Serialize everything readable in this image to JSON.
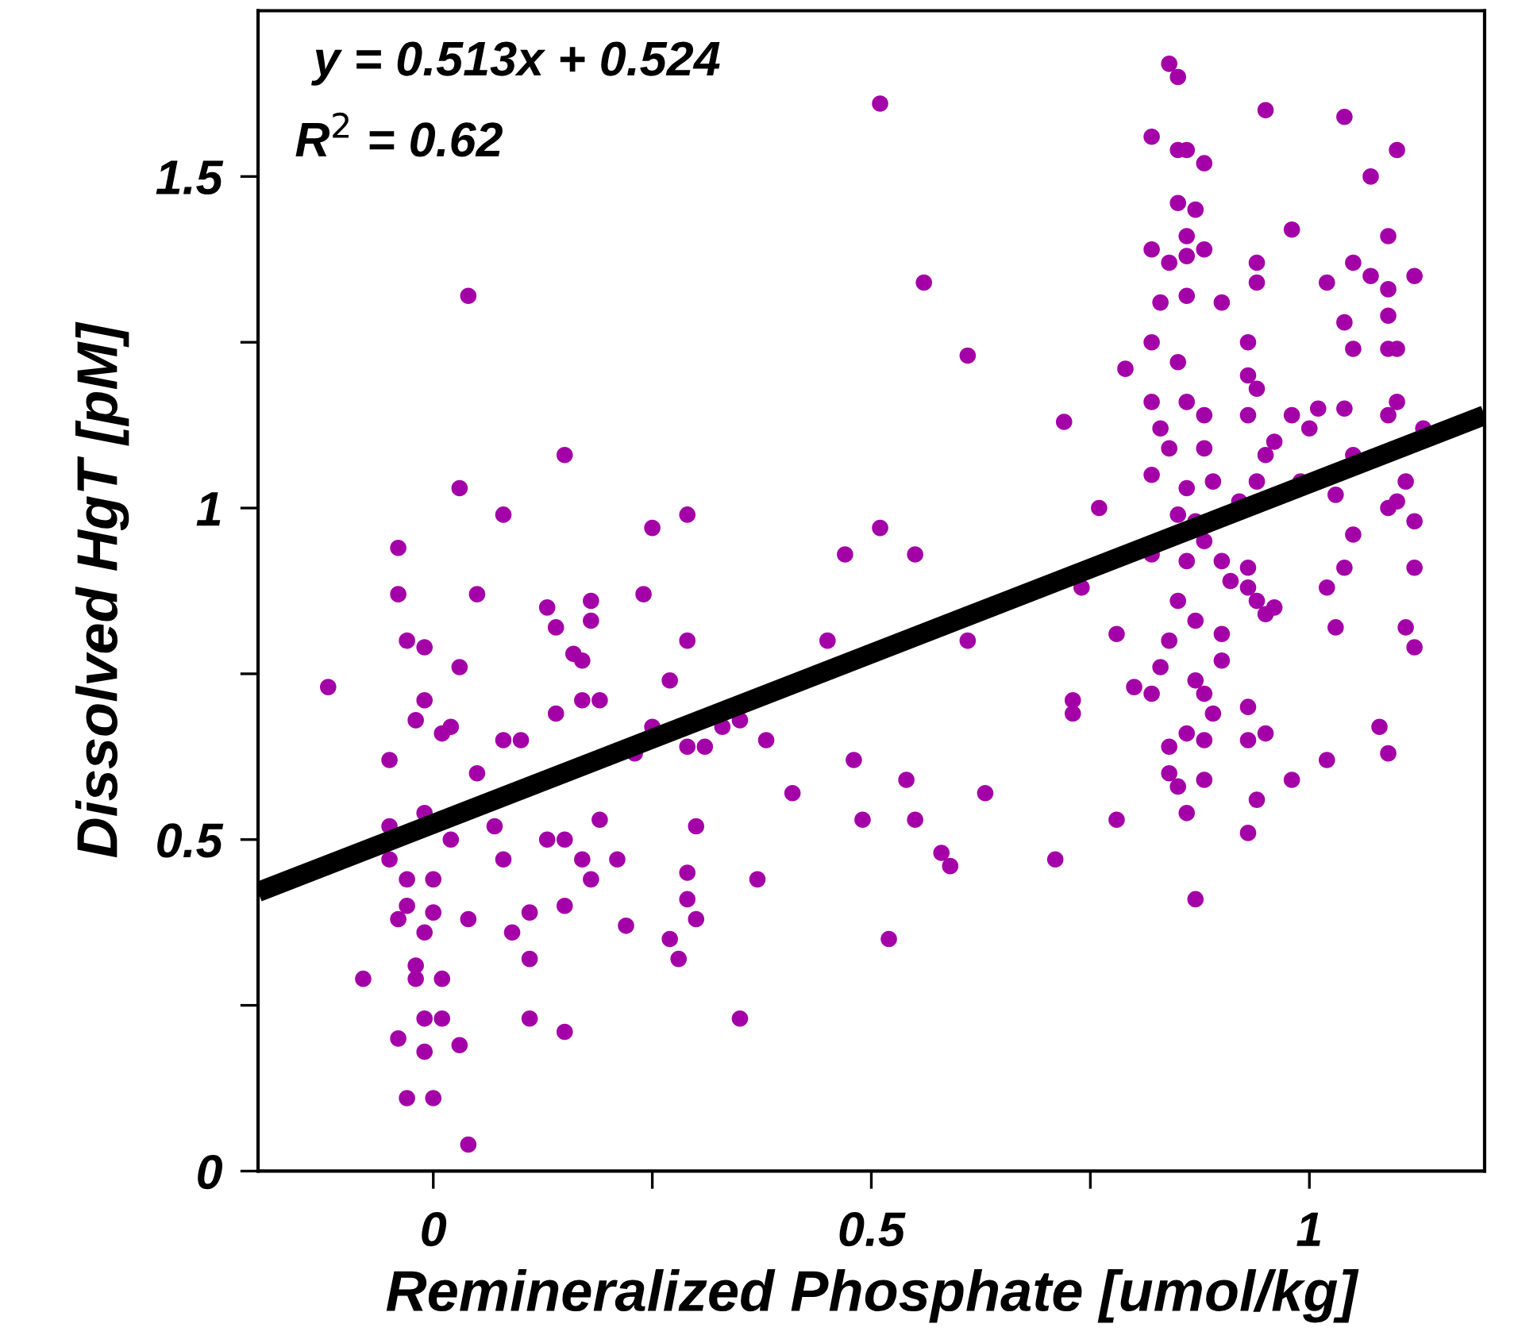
{
  "chart_data": {
    "type": "scatter",
    "xlabel": "Remineralized Phosphate [umol/kg]",
    "ylabel": "Dissolved HgT [pM]",
    "annotations": [
      "y = 0.513x + 0.524",
      "R$^{2}$ = 0.62"
    ],
    "xlim": [
      -0.2,
      1.2
    ],
    "ylim": [
      0,
      1.75
    ],
    "xticks": [
      0,
      {
        "value": 0.25,
        "label": null
      },
      0.5,
      {
        "value": 0.75,
        "label": null
      },
      1
    ],
    "yticks": [
      0,
      {
        "value": 0.25,
        "label": null
      },
      0.5,
      {
        "value": 0.75,
        "label": null
      },
      1,
      {
        "value": 1.25,
        "label": null
      },
      1.5
    ],
    "grid": false,
    "legend": false,
    "marker": "circle",
    "series": [
      {
        "type": "scatter",
        "color": "#a400a8",
        "x": [
          -0.12,
          -0.08,
          -0.04,
          -0.04,
          -0.05,
          -0.05,
          -0.05,
          -0.04,
          -0.04,
          -0.03,
          -0.03,
          -0.01,
          -0.03,
          -0.03,
          -0.02,
          -0.02,
          -0.01,
          -0.01,
          -0.02,
          0,
          -0.01,
          0,
          0,
          -0.01,
          0.01,
          0.01,
          0.01,
          0.02,
          -0.01,
          0.02,
          0.03,
          0.03,
          0.04,
          0.04,
          0.03,
          0.04,
          0.05,
          0.05,
          0.07,
          0.08,
          0.08,
          0.08,
          0.09,
          0.1,
          0.11,
          0.11,
          0.11,
          0.13,
          0.13,
          0.14,
          0.15,
          0.15,
          0.15,
          0.15,
          0.14,
          0.16,
          0.17,
          0.18,
          0.18,
          0.17,
          0.17,
          0.19,
          0.18,
          0.19,
          0.21,
          0.22,
          0.23,
          0.24,
          0.25,
          0.25,
          0.27,
          0.27,
          0.28,
          0.29,
          0.29,
          0.29,
          0.29,
          0.29,
          0.3,
          0.3,
          0.31,
          0.33,
          0.35,
          0.35,
          0.37,
          0.38,
          0.41,
          0.45,
          0.48,
          0.47,
          0.49,
          0.51,
          0.51,
          0.52,
          0.54,
          0.55,
          0.55,
          0.56,
          0.58,
          0.59,
          0.61,
          0.61,
          0.63,
          0.71,
          0.72,
          0.73,
          0.73,
          0.74,
          0.76,
          0.78,
          0.78,
          0.79,
          0.8,
          0.82,
          0.82,
          0.82,
          0.82,
          0.82,
          0.82,
          0.84,
          0.85,
          0.85,
          0.86,
          0.88,
          0.85,
          0.87,
          0.86,
          0.88,
          0.86,
          0.83,
          0.86,
          0.9,
          0.84,
          0.85,
          0.86,
          0.88,
          0.82,
          0.83,
          0.84,
          0.88,
          0.86,
          0.89,
          0.85,
          0.87,
          0.86,
          0.88,
          0.9,
          0.91,
          0.93,
          0.94,
          0.93,
          0.95,
          0.96,
          0.85,
          0.87,
          0.84,
          0.9,
          0.83,
          0.87,
          0.88,
          0.89,
          0.86,
          0.84,
          0.88,
          0.84,
          0.85,
          0.88,
          0.86,
          0.87,
          0.9,
          0.93,
          0.93,
          0.95,
          0.94,
          0.93,
          0.98,
          1.02,
          1.08,
          1.09,
          1.12,
          1.12,
          1.12,
          1.1,
          1.11,
          1.09,
          1.03,
          1.02,
          1.04,
          1.05,
          1.03,
          0.99,
          1.0,
          0.98,
          1.01,
          1.04,
          1.1,
          1.09,
          1.13,
          1.05,
          0.95,
          0.92,
          0.94,
          0.93,
          0.94,
          0.93,
          0.93,
          0.96,
          0.94,
          0.94,
          0.98,
          0.95,
          1.04,
          1.07,
          1.1,
          1.09,
          1.12,
          1.02,
          1.05,
          1.07,
          1.09,
          1.04,
          1.09,
          1.09,
          1.1,
          1.05,
          1.11
        ],
        "values": [
          0.73,
          0.29,
          0.94,
          0.87,
          0.62,
          0.52,
          0.47,
          0.38,
          0.2,
          0.11,
          0.8,
          0.79,
          0.44,
          0.4,
          0.31,
          0.29,
          0.18,
          0.71,
          0.68,
          0.39,
          0.36,
          0.44,
          0.11,
          0.23,
          0.29,
          0.23,
          0.66,
          0.67,
          0.54,
          0.5,
          1.03,
          0.76,
          1.32,
          0.04,
          0.19,
          0.38,
          0.6,
          0.87,
          0.52,
          0.65,
          0.47,
          0.99,
          0.36,
          0.65,
          0.39,
          0.23,
          0.32,
          0.85,
          0.5,
          0.82,
          0.5,
          1.08,
          0.21,
          0.4,
          0.69,
          0.78,
          0.77,
          0.83,
          0.86,
          0.71,
          0.47,
          0.71,
          0.44,
          0.53,
          0.47,
          0.37,
          0.63,
          0.87,
          0.67,
          0.97,
          0.74,
          0.35,
          0.32,
          0.99,
          0.8,
          0.64,
          0.45,
          0.41,
          0.38,
          0.52,
          0.64,
          0.67,
          0.68,
          0.23,
          0.44,
          0.65,
          0.57,
          0.8,
          0.62,
          0.93,
          0.53,
          1.61,
          0.97,
          0.35,
          0.59,
          0.93,
          0.53,
          1.34,
          0.48,
          0.46,
          0.8,
          1.23,
          0.57,
          0.47,
          1.13,
          0.71,
          0.69,
          0.88,
          1.0,
          0.81,
          0.53,
          1.21,
          0.73,
          1.56,
          1.39,
          1.25,
          1.05,
          0.72,
          0.93,
          1.67,
          1.65,
          1.54,
          1.54,
          1.52,
          1.46,
          1.45,
          1.41,
          1.39,
          1.38,
          1.31,
          1.32,
          1.31,
          1.37,
          1.22,
          1.16,
          1.14,
          1.16,
          1.12,
          1.09,
          1.09,
          1.03,
          1.04,
          0.99,
          0.98,
          0.92,
          0.95,
          0.92,
          0.89,
          0.88,
          0.86,
          0.91,
          0.84,
          0.85,
          0.86,
          0.83,
          0.8,
          0.81,
          0.76,
          0.74,
          0.72,
          0.69,
          0.66,
          0.64,
          0.65,
          0.6,
          0.58,
          0.59,
          0.54,
          0.41,
          0.77,
          0.7,
          0.65,
          0.66,
          0.56,
          0.51,
          0.59,
          0.62,
          0.67,
          0.63,
          0.79,
          0.91,
          0.98,
          1.01,
          1.04,
          1.0,
          0.82,
          0.88,
          0.91,
          0.96,
          1.02,
          1.04,
          1.12,
          1.14,
          1.15,
          1.15,
          1.16,
          1.14,
          1.12,
          1.08,
          1.08,
          1.01,
          1.04,
          1.14,
          1.18,
          1.2,
          1.25,
          1.1,
          1.34,
          1.37,
          1.42,
          1.6,
          1.59,
          1.5,
          1.54,
          1.41,
          1.35,
          1.34,
          1.37,
          1.35,
          1.33,
          1.28,
          1.29,
          1.24,
          1.24,
          1.24,
          0.82
        ]
      },
      {
        "type": "line",
        "color": "#000000",
        "line_style": "solid",
        "marker": "none",
        "x": [
          -0.2,
          1.2
        ],
        "values": [
          0.421,
          1.14
        ]
      }
    ]
  }
}
